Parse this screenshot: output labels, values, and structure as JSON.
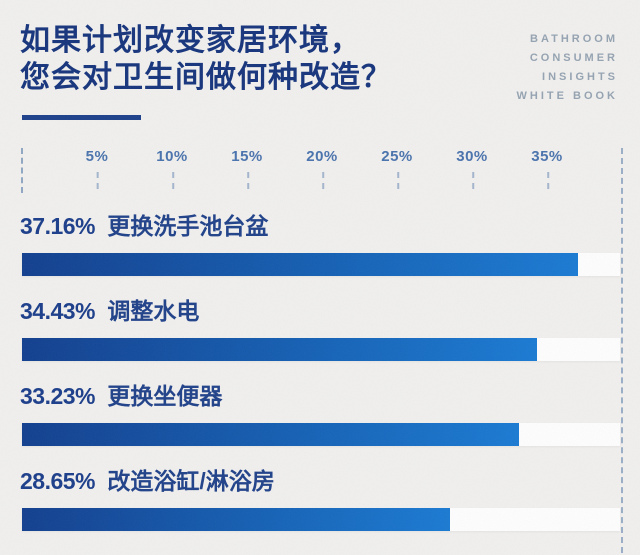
{
  "header": {
    "title_line1": "如果计划改变家居环境，",
    "title_line2": "您会对卫生间做何种改造？",
    "brand_line1": "BATHROOM",
    "brand_line2": "CONSUMER",
    "brand_line3": "INSIGHTS",
    "brand_line4": "WHITE BOOK"
  },
  "colors": {
    "background": "#f0efed",
    "title_navy": "#17357d",
    "axis_blue": "#4a73ad",
    "bar_gradient_start": "#123f8e",
    "bar_gradient_end": "#1a7ad2",
    "track_white": "#fdfdfd",
    "brand_gray": "#95a3b2"
  },
  "chart_data": {
    "type": "bar",
    "orientation": "horizontal",
    "title": "如果计划改变家居环境，您会对卫生间做何种改造？",
    "axis_max": 40,
    "tick_suffix": "%",
    "ticks": [
      5,
      10,
      15,
      20,
      25,
      30,
      35
    ],
    "grid": "dashed guide lines at 0% (axis area only) and 40% (full height)",
    "legend_position": "none",
    "categories": [
      "更换洗手池台盆",
      "调整水电",
      "更换坐便器",
      "改造浴缸/淋浴房"
    ],
    "values": [
      37.16,
      34.43,
      33.23,
      28.65
    ],
    "rows": [
      {
        "pct_label": "37.16%",
        "label": "更换洗手池台盆",
        "value": 37.16
      },
      {
        "pct_label": "34.43%",
        "label": "调整水电",
        "value": 34.43
      },
      {
        "pct_label": "33.23%",
        "label": "更换坐便器",
        "value": 33.23
      },
      {
        "pct_label": "28.65%",
        "label": "改造浴缸/淋浴房",
        "value": 28.65
      }
    ]
  }
}
